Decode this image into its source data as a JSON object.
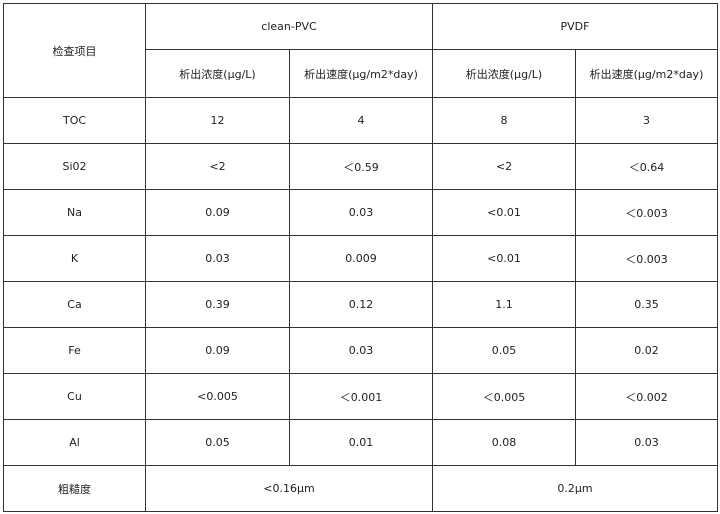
{
  "header": {
    "item_label": "检查项目",
    "groups": [
      {
        "name": "clean-PVC",
        "columns": [
          "析出浓度(μg/L)",
          "析出速度(μg/m2*day)"
        ]
      },
      {
        "name": "PVDF",
        "columns": [
          "析出浓度(μg/L)",
          "析出速度(μg/m2*day)"
        ]
      }
    ]
  },
  "table": {
    "rows": [
      [
        "TOC",
        "12",
        "4",
        "8",
        "3"
      ],
      [
        "Si02",
        "<2",
        "＜0.59",
        "<2",
        "＜0.64"
      ],
      [
        "Na",
        "0.09",
        "0.03",
        "<0.01",
        "＜0.003"
      ],
      [
        "K",
        "0.03",
        "0.009",
        "<0.01",
        "＜0.003"
      ],
      [
        "Ca",
        "0.39",
        "0.12",
        "1.1",
        "0.35"
      ],
      [
        "Fe",
        "0.09",
        "0.03",
        "0.05",
        "0.02"
      ],
      [
        "Cu",
        "<0.005",
        "＜0.001",
        "＜0.005",
        "＜0.002"
      ],
      [
        "Al",
        "0.05",
        "0.01",
        "0.08",
        "0.03"
      ]
    ]
  },
  "roughness": {
    "label": "粗糙度",
    "values": [
      "<0.16μm",
      "0.2μm"
    ]
  }
}
